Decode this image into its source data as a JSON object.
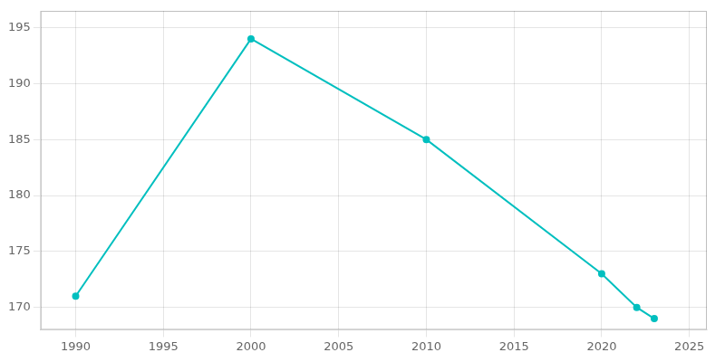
{
  "chart_data": {
    "type": "line",
    "x": [
      1990,
      2000,
      2010,
      2020,
      2022,
      2023
    ],
    "values": [
      171,
      194,
      185,
      173,
      170,
      169
    ],
    "color": "#00bfbf",
    "marker": "circle",
    "xlim": [
      1988,
      2026
    ],
    "xticks": [
      1990,
      1995,
      2000,
      2005,
      2010,
      2015,
      2020,
      2025
    ],
    "ylim": [
      168,
      196.5
    ],
    "yticks": [
      170,
      175,
      180,
      185,
      190,
      195
    ],
    "grid": true
  }
}
